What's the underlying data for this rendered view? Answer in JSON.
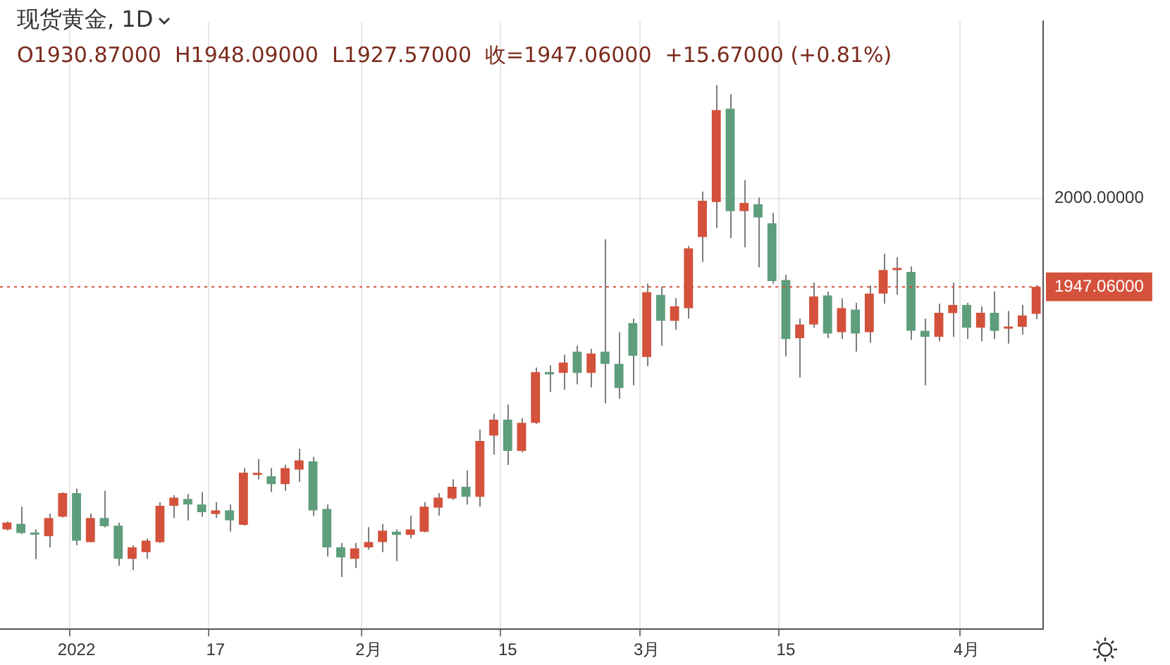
{
  "chart_data": {
    "type": "candlestick",
    "title": "现货黄金, 1D",
    "subtitle": "O1930.87000  H1948.09000  L1927.57000  收=1947.06000  +15.67000 (+0.81%)",
    "categories": [
      null,
      null,
      null,
      null,
      null,
      "2022",
      null,
      null,
      null,
      null,
      null,
      null,
      null,
      null,
      null,
      "17",
      null,
      null,
      null,
      null,
      null,
      null,
      null,
      null,
      null,
      null,
      "2月",
      null,
      null,
      null,
      null,
      null,
      null,
      null,
      null,
      null,
      "15",
      null,
      null,
      null,
      null,
      null,
      null,
      null,
      null,
      null,
      "3月",
      null,
      null,
      null,
      null,
      null,
      null,
      null,
      null,
      null,
      "15",
      null,
      null,
      null,
      null,
      null,
      null,
      null,
      null,
      null,
      null,
      null,
      null,
      "4月",
      null,
      null,
      null,
      null,
      null
    ],
    "ohlc": [
      [
        1801.8,
        1806.5,
        1801,
        1805.9
      ],
      [
        1805.1,
        1815.4,
        1799,
        1799.6
      ],
      [
        1799.6,
        1801.8,
        1784,
        1798.6
      ],
      [
        1797.7,
        1811.3,
        1791,
        1808.6
      ],
      [
        1809.4,
        1824,
        1809,
        1823.5
      ],
      [
        1823.5,
        1826.2,
        1792.3,
        1795
      ],
      [
        1794.2,
        1811.3,
        1794,
        1808.6
      ],
      [
        1808.6,
        1824.9,
        1803,
        1803.7
      ],
      [
        1804,
        1805.9,
        1780.1,
        1784.2
      ],
      [
        1784.2,
        1792.3,
        1777.4,
        1791
      ],
      [
        1788.2,
        1796.4,
        1784.2,
        1795
      ],
      [
        1794.2,
        1818.1,
        1793.7,
        1815.9
      ],
      [
        1815.9,
        1822.2,
        1808.6,
        1820.8
      ],
      [
        1820,
        1823,
        1807.2,
        1816.7
      ],
      [
        1816.7,
        1824.1,
        1809.4,
        1812.1
      ],
      [
        1811,
        1818.1,
        1808.6,
        1813.2
      ],
      [
        1813.2,
        1816.7,
        1800.4,
        1807.2
      ],
      [
        1804.5,
        1838.5,
        1804,
        1835.7
      ],
      [
        1834.4,
        1843.9,
        1831.7,
        1835.5
      ],
      [
        1833.6,
        1838.5,
        1824.1,
        1828.9
      ],
      [
        1828.9,
        1840.4,
        1824.9,
        1838.5
      ],
      [
        1837.6,
        1850.1,
        1830.3,
        1843.1
      ],
      [
        1842.5,
        1845.2,
        1809.9,
        1813.2
      ],
      [
        1814,
        1816.7,
        1785.5,
        1791
      ],
      [
        1791,
        1793.7,
        1773.3,
        1785
      ],
      [
        1784.2,
        1793.7,
        1778.7,
        1790.4
      ],
      [
        1791,
        1803.2,
        1789.6,
        1794.2
      ],
      [
        1794.2,
        1805.1,
        1788.2,
        1801
      ],
      [
        1800.4,
        1801.8,
        1782.8,
        1798.5
      ],
      [
        1798.5,
        1810,
        1796.4,
        1801.8
      ],
      [
        1800.4,
        1818.1,
        1800,
        1815.4
      ],
      [
        1814.8,
        1823.5,
        1810,
        1820.8
      ],
      [
        1820.3,
        1831.7,
        1819.4,
        1827.3
      ],
      [
        1827.3,
        1837.1,
        1816.7,
        1821.3
      ],
      [
        1821.3,
        1861.5,
        1815.4,
        1854.7
      ],
      [
        1858,
        1871,
        1846.6,
        1867.5
      ],
      [
        1867.5,
        1876.5,
        1840.4,
        1848.8
      ],
      [
        1848.8,
        1868.3,
        1848,
        1865.6
      ],
      [
        1865.6,
        1898.7,
        1865,
        1896
      ],
      [
        1896,
        1900.1,
        1884.1,
        1894.6
      ],
      [
        1895.5,
        1906.3,
        1885.4,
        1901.7
      ],
      [
        1908.2,
        1911.8,
        1888.7,
        1895.5
      ],
      [
        1895.5,
        1909.9,
        1886.8,
        1907.1
      ],
      [
        1908.2,
        1975.6,
        1877.3,
        1900.9
      ],
      [
        1900.9,
        1919.9,
        1880,
        1886.5
      ],
      [
        1925.3,
        1928,
        1888.1,
        1905.8
      ],
      [
        1905,
        1949,
        1899.5,
        1943.8
      ],
      [
        1942.2,
        1947.1,
        1911.8,
        1926.7
      ],
      [
        1926.7,
        1940.3,
        1921.3,
        1935.4
      ],
      [
        1934.3,
        1971.5,
        1928,
        1970.1
      ],
      [
        1976.9,
        2004.1,
        1962,
        1998.6
      ],
      [
        1997.8,
        2067.9,
        1982.3,
        2052.9
      ],
      [
        2053.8,
        2062.4,
        1976.1,
        1992.4
      ],
      [
        1992.4,
        2010.9,
        1970.7,
        1997.3
      ],
      [
        1996.5,
        2000.5,
        1958.7,
        1988.6
      ],
      [
        1985.1,
        1991.3,
        1949,
        1950.5
      ],
      [
        1951.1,
        1954.3,
        1905.5,
        1915.8
      ],
      [
        1916.3,
        1928,
        1892.7,
        1924.5
      ],
      [
        1924.5,
        1949.7,
        1922.6,
        1941.3
      ],
      [
        1941.9,
        1944.3,
        1916.3,
        1919.1
      ],
      [
        1919.9,
        1940.2,
        1915.8,
        1934.3
      ],
      [
        1933.4,
        1937.5,
        1908.2,
        1919.1
      ],
      [
        1919.9,
        1947.8,
        1913.6,
        1943
      ],
      [
        1943,
        1966.8,
        1937,
        1957.1
      ],
      [
        1957.1,
        1964.7,
        1942.4,
        1957.9
      ],
      [
        1956,
        1959.2,
        1915.3,
        1920.7
      ],
      [
        1920.7,
        1928,
        1888.1,
        1917.1
      ],
      [
        1917.1,
        1937,
        1914.4,
        1931.5
      ],
      [
        1931.3,
        1949.7,
        1917.1,
        1936.2
      ],
      [
        1936.2,
        1937.5,
        1915.8,
        1922.6
      ],
      [
        1922.6,
        1935.3,
        1914.4,
        1931.5
      ],
      [
        1931.5,
        1944.3,
        1915.8,
        1920.7
      ],
      [
        1922,
        1932.6,
        1913.1,
        1923.1
      ],
      [
        1923.1,
        1936.2,
        1918.5,
        1929.9
      ],
      [
        1930.87,
        1948.09,
        1927.57,
        1947.06
      ]
    ],
    "colors": [
      "#d4513b",
      "#5e9e7c",
      "#5e9e7c",
      "#d4513b",
      "#d4513b",
      "#5e9e7c",
      "#d4513b",
      "#5e9e7c",
      "#5e9e7c",
      "#d4513b",
      "#d4513b",
      "#d4513b",
      "#d4513b",
      "#5e9e7c",
      "#5e9e7c",
      "#d4513b",
      "#5e9e7c",
      "#d4513b",
      "#d4513b",
      "#5e9e7c",
      "#d4513b",
      "#d4513b",
      "#5e9e7c",
      "#5e9e7c",
      "#5e9e7c",
      "#d4513b",
      "#d4513b",
      "#d4513b",
      "#5e9e7c",
      "#d4513b",
      "#d4513b",
      "#d4513b",
      "#d4513b",
      "#5e9e7c",
      "#d4513b",
      "#d4513b",
      "#5e9e7c",
      "#d4513b",
      "#d4513b",
      "#5e9e7c",
      "#d4513b",
      "#5e9e7c",
      "#d4513b",
      "#5e9e7c",
      "#5e9e7c",
      "#5e9e7c",
      "#d4513b",
      "#5e9e7c",
      "#d4513b",
      "#d4513b",
      "#d4513b",
      "#d4513b",
      "#5e9e7c",
      "#d4513b",
      "#5e9e7c",
      "#5e9e7c",
      "#5e9e7c",
      "#d4513b",
      "#d4513b",
      "#5e9e7c",
      "#d4513b",
      "#5e9e7c",
      "#d4513b",
      "#d4513b",
      "#d4513b",
      "#5e9e7c",
      "#5e9e7c",
      "#d4513b",
      "#d4513b",
      "#5e9e7c",
      "#d4513b",
      "#5e9e7c",
      "#d4513b",
      "#d4513b",
      "#d4513b"
    ],
    "ylim": [
      1742,
      2106
    ],
    "yticks": [
      {
        "value": 1947.06,
        "label": "1947.06000"
      },
      {
        "value": 2000,
        "label": "2000.00000"
      }
    ],
    "ref_lines": [
      {
        "axis": "y",
        "value": 1947.06,
        "color": "#d4513b",
        "line_style": "dotted"
      }
    ],
    "grid": true
  }
}
